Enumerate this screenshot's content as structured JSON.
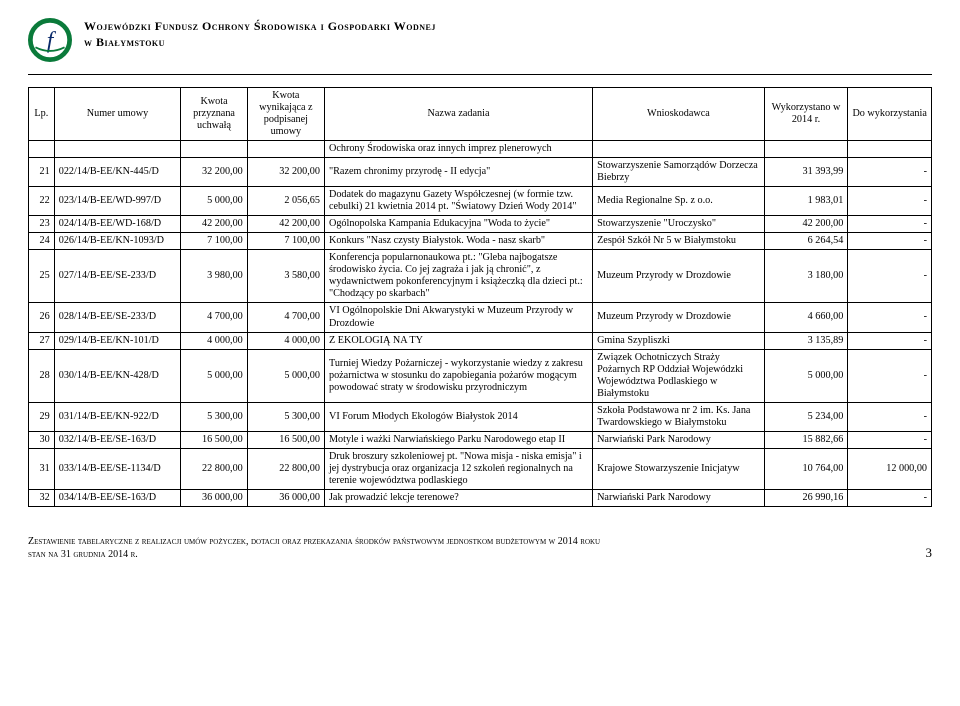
{
  "header": {
    "line1": "Wojewódzki Fundusz Ochrony Środowiska i Gospodarki Wodnej",
    "line2": "w Białymstoku"
  },
  "columns": {
    "lp": "Lp.",
    "numer": "Numer umowy",
    "kwota1": "Kwota przyznana uchwałą",
    "kwota2": "Kwota wynikająca z podpisanej umowy",
    "zadanie": "Nazwa zadania",
    "wniosk": "Wnioskodawca",
    "wyk": "Wykorzystano w 2014 r.",
    "do": "Do wykorzystania"
  },
  "cont_task": "Ochrony Środowiska oraz innych imprez plenerowych",
  "rows": [
    {
      "lp": "21",
      "num": "022/14/B-EE/KN-445/D",
      "a1": "32 200,00",
      "a2": "32 200,00",
      "task": "\"Razem chronimy przyrodę - II edycja\"",
      "app": "Stowarzyszenie Samorządów Dorzecza Biebrzy",
      "used": "31 393,99",
      "todo": "-"
    },
    {
      "lp": "22",
      "num": "023/14/B-EE/WD-997/D",
      "a1": "5 000,00",
      "a2": "2 056,65",
      "task": "Dodatek do magazynu Gazety Współczesnej (w formie tzw. cebulki) 21 kwietnia 2014 pt. \"Światowy Dzień Wody 2014\"",
      "app": "Media Regionalne Sp. z o.o.",
      "used": "1 983,01",
      "todo": "-"
    },
    {
      "lp": "23",
      "num": "024/14/B-EE/WD-168/D",
      "a1": "42 200,00",
      "a2": "42 200,00",
      "task": "Ogólnopolska Kampania Edukacyjna \"Woda to życie\"",
      "app": "Stowarzyszenie \"Uroczysko\"",
      "used": "42 200,00",
      "todo": "-"
    },
    {
      "lp": "24",
      "num": "026/14/B-EE/KN-1093/D",
      "a1": "7 100,00",
      "a2": "7 100,00",
      "task": "Konkurs \"Nasz czysty Białystok. Woda - nasz skarb\"",
      "app": "Zespół Szkół Nr 5 w Białymstoku",
      "used": "6 264,54",
      "todo": "-"
    },
    {
      "lp": "25",
      "num": "027/14/B-EE/SE-233/D",
      "a1": "3 980,00",
      "a2": "3 580,00",
      "task": "Konferencja popularnonaukowa pt.: \"Gleba najbogatsze środowisko życia. Co jej zagraża i jak ją chronić\", z wydawnictwem pokonferencyjnym i książeczką dla dzieci pt.: \"Chodzący po skarbach\"",
      "app": "Muzeum Przyrody w Drozdowie",
      "used": "3 180,00",
      "todo": "-"
    },
    {
      "lp": "26",
      "num": "028/14/B-EE/SE-233/D",
      "a1": "4 700,00",
      "a2": "4 700,00",
      "task": "VI Ogólnopolskie Dni Akwarystyki w Muzeum Przyrody w Drozdowie",
      "app": "Muzeum Przyrody w Drozdowie",
      "used": "4 660,00",
      "todo": "-"
    },
    {
      "lp": "27",
      "num": "029/14/B-EE/KN-101/D",
      "a1": "4 000,00",
      "a2": "4 000,00",
      "task": "Z EKOLOGIĄ NA TY",
      "app": "Gmina Szypliszki",
      "used": "3 135,89",
      "todo": "-"
    },
    {
      "lp": "28",
      "num": "030/14/B-EE/KN-428/D",
      "a1": "5 000,00",
      "a2": "5 000,00",
      "task": "Turniej Wiedzy Pożarniczej - wykorzystanie wiedzy z zakresu pożarnictwa w stosunku do zapobiegania pożarów mogącym powodować straty w środowisku przyrodniczym",
      "app": "Związek Ochotniczych Straży Pożarnych RP Oddział Wojewódzki Województwa Podlaskiego w Białymstoku",
      "used": "5 000,00",
      "todo": "-"
    },
    {
      "lp": "29",
      "num": "031/14/B-EE/KN-922/D",
      "a1": "5 300,00",
      "a2": "5 300,00",
      "task": "VI Forum Młodych Ekologów Białystok 2014",
      "app": "Szkoła Podstawowa nr 2 im. Ks. Jana Twardowskiego w Białymstoku",
      "used": "5 234,00",
      "todo": "-"
    },
    {
      "lp": "30",
      "num": "032/14/B-EE/SE-163/D",
      "a1": "16 500,00",
      "a2": "16 500,00",
      "task": "Motyle i ważki Narwiańskiego Parku Narodowego etap II",
      "app": "Narwiański Park Narodowy",
      "used": "15 882,66",
      "todo": "-"
    },
    {
      "lp": "31",
      "num": "033/14/B-EE/SE-1134/D",
      "a1": "22 800,00",
      "a2": "22 800,00",
      "task": "Druk broszury szkoleniowej pt. \"Nowa misja - niska emisja\" i jej dystrybucja oraz organizacja 12 szkoleń regionalnych na terenie województwa podlaskiego",
      "app": "Krajowe Stowarzyszenie Inicjatyw",
      "used": "10 764,00",
      "todo": "12 000,00"
    },
    {
      "lp": "32",
      "num": "034/14/B-EE/SE-163/D",
      "a1": "36 000,00",
      "a2": "36 000,00",
      "task": "Jak prowadzić lekcje terenowe?",
      "app": "Narwiański Park Narodowy",
      "used": "26 990,16",
      "todo": "-"
    }
  ],
  "footer": {
    "line1": "Zestawienie tabelaryczne z realizacji umów pożyczek, dotacji oraz przekazania środków państwowym jednostkom budżetowym w 2014 roku",
    "line2": "stan na 31 grudnia 2014 r.",
    "page": "3"
  }
}
